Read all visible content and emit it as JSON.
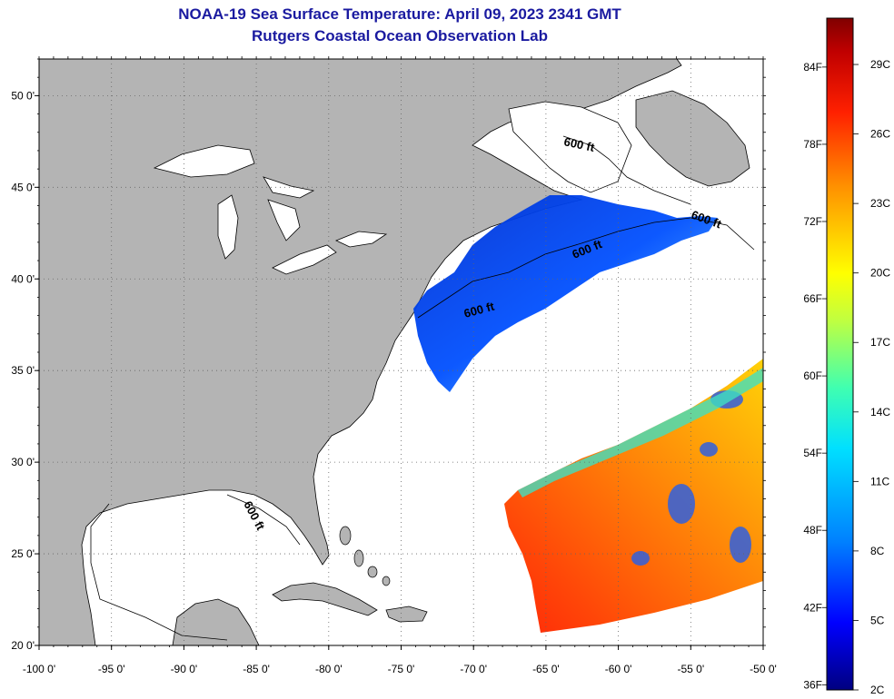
{
  "title_line1": "NOAA-19 Sea Surface Temperature:  April 09, 2023 2341 GMT",
  "title_line2": "Rutgers Coastal Ocean Observation Lab",
  "map": {
    "lon_range": [
      -100,
      -50
    ],
    "lat_range": [
      20,
      52
    ],
    "lon_ticks": [
      {
        "value": -100,
        "label": "-100 0'"
      },
      {
        "value": -95,
        "label": "-95 0'"
      },
      {
        "value": -90,
        "label": "-90 0'"
      },
      {
        "value": -85,
        "label": "-85 0'"
      },
      {
        "value": -80,
        "label": "-80 0'"
      },
      {
        "value": -75,
        "label": "-75 0'"
      },
      {
        "value": -70,
        "label": "-70 0'"
      },
      {
        "value": -65,
        "label": "-65 0'"
      },
      {
        "value": -60,
        "label": "-60 0'"
      },
      {
        "value": -55,
        "label": "-55 0'"
      },
      {
        "value": -50,
        "label": "-50 0'"
      }
    ],
    "lat_ticks": [
      {
        "value": 20,
        "label": "20 0'"
      },
      {
        "value": 25,
        "label": "25 0'"
      },
      {
        "value": 30,
        "label": "30 0'"
      },
      {
        "value": 35,
        "label": "35 0'"
      },
      {
        "value": 40,
        "label": "40 0'"
      },
      {
        "value": 45,
        "label": "45 0'"
      },
      {
        "value": 50,
        "label": "50 0'"
      }
    ],
    "isobath_label": "600 ft",
    "grid": "dotted",
    "land_color": "#b4b4b4",
    "ocean_color": "#ffffff"
  },
  "colorbar": {
    "fahrenheit_labels": [
      "84F",
      "78F",
      "72F",
      "66F",
      "60F",
      "54F",
      "48F",
      "42F",
      "36F"
    ],
    "celsius_labels": [
      "29C",
      "26C",
      "23C",
      "20C",
      "17C",
      "14C",
      "11C",
      "8C",
      "5C",
      "2C"
    ],
    "range_c": [
      2,
      31
    ],
    "colors": [
      "#000080",
      "#0000ff",
      "#0080ff",
      "#00e0ff",
      "#40ffb0",
      "#c0ff40",
      "#ffff00",
      "#ff9000",
      "#ff2000",
      "#c00000",
      "#800000"
    ]
  }
}
